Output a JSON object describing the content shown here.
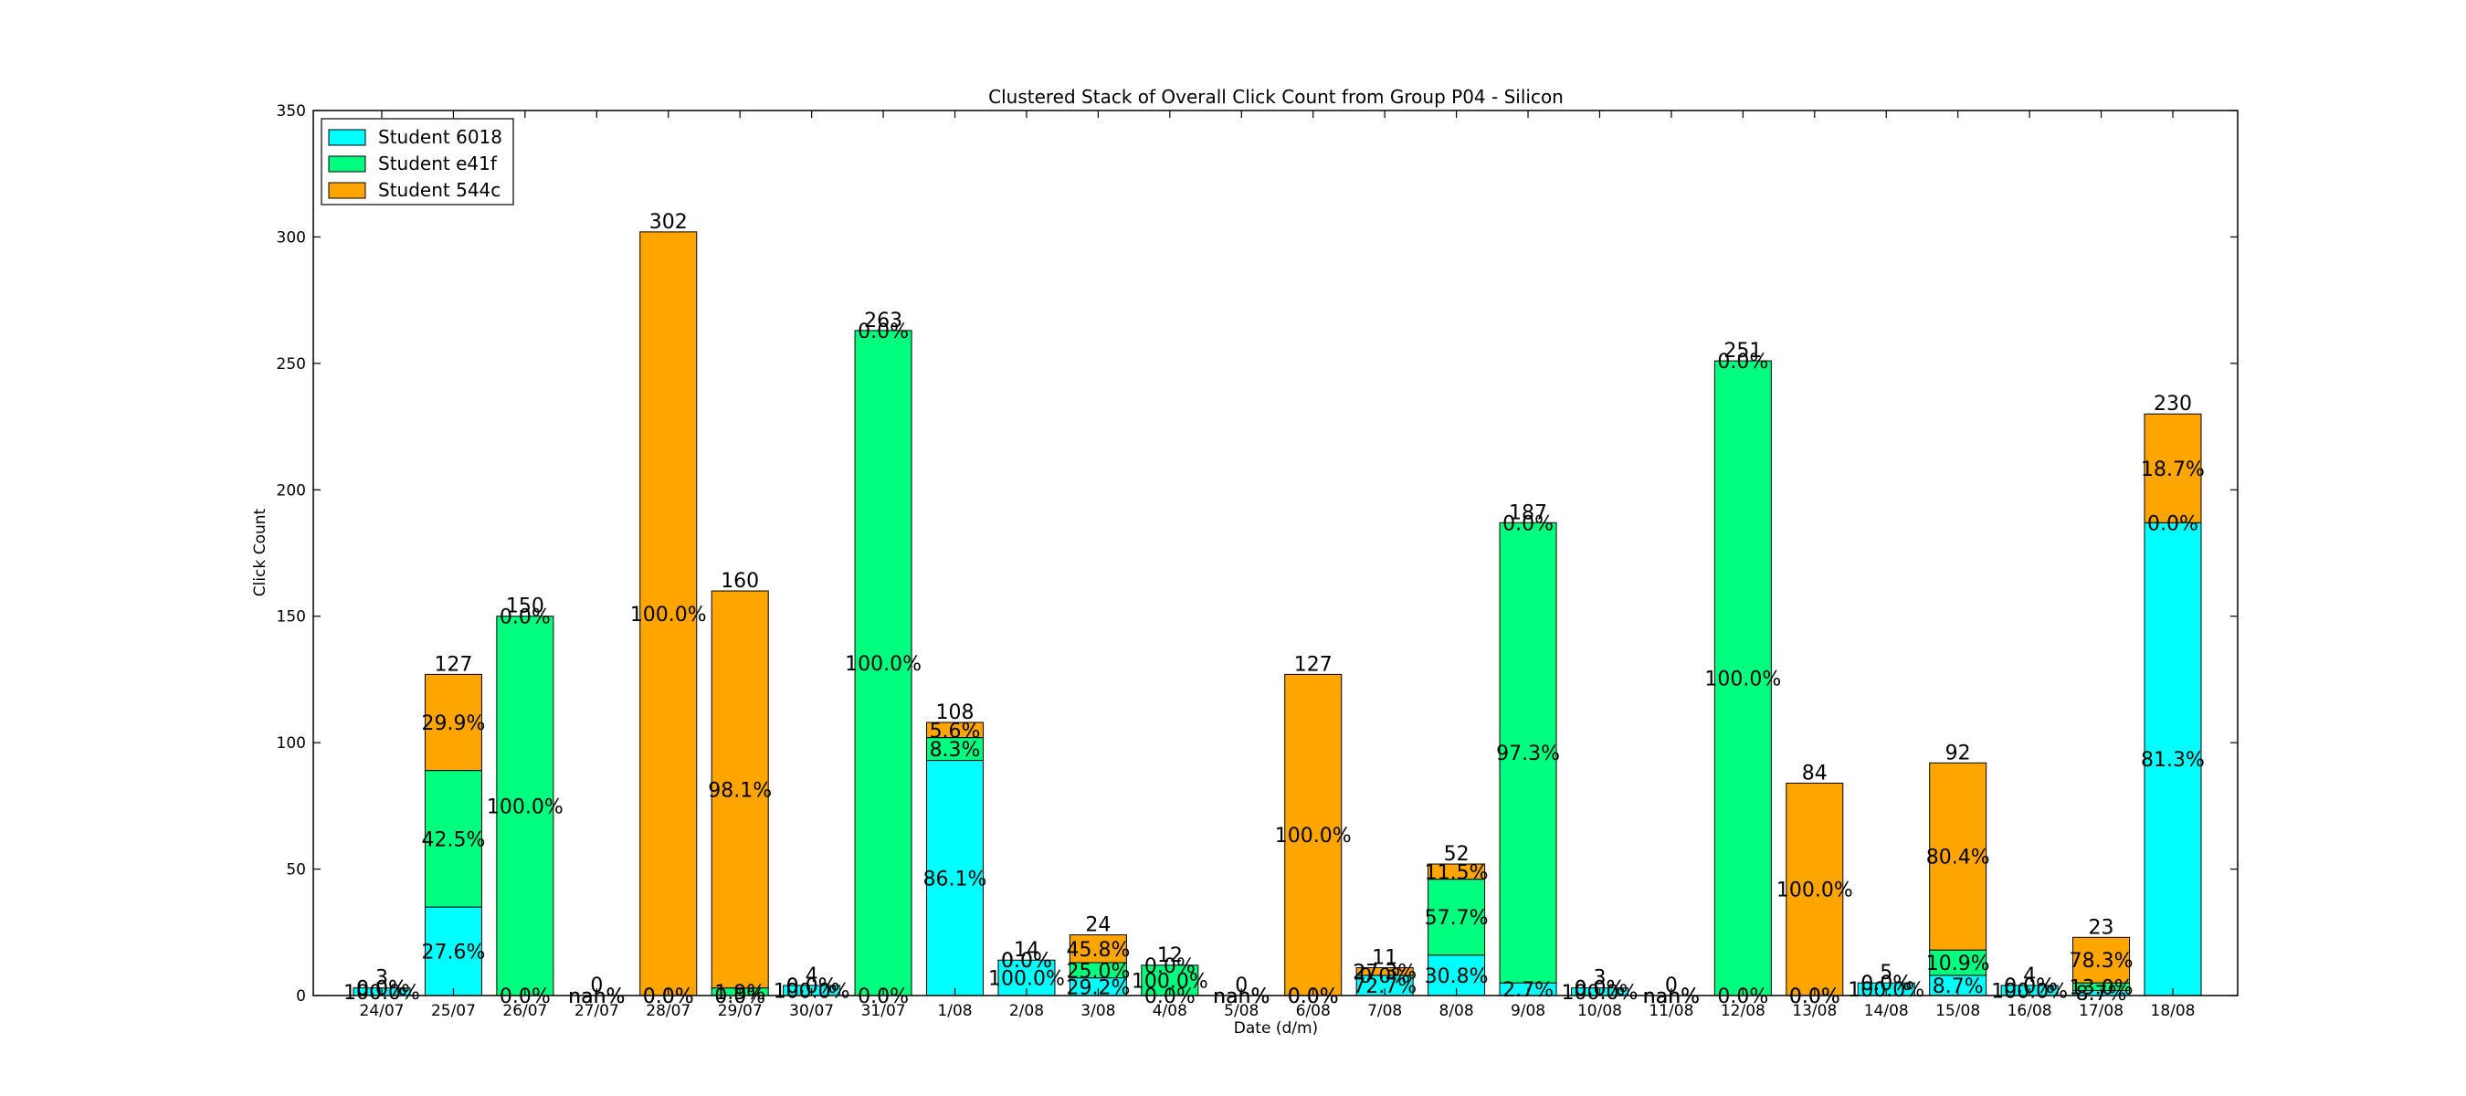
{
  "chart_data": {
    "type": "bar",
    "stacked": true,
    "title": "Clustered Stack of Overall Click Count from Group P04 - Silicon",
    "xlabel": "Date (d/m)",
    "ylabel": "Click Count",
    "ylim": [
      0,
      350
    ],
    "yticks": [
      0,
      50,
      100,
      150,
      200,
      250,
      300,
      350
    ],
    "legend_position": "top-left",
    "grid": false,
    "categories": [
      "24/07",
      "25/07",
      "26/07",
      "27/07",
      "28/07",
      "29/07",
      "30/07",
      "31/07",
      "1/08",
      "2/08",
      "3/08",
      "4/08",
      "5/08",
      "6/08",
      "7/08",
      "8/08",
      "9/08",
      "10/08",
      "11/08",
      "12/08",
      "13/08",
      "14/08",
      "15/08",
      "16/08",
      "17/08",
      "18/08"
    ],
    "series": [
      {
        "name": "Student 6018",
        "color": "#00ffff",
        "values": [
          3,
          35,
          0,
          0,
          0,
          0,
          4,
          0,
          93,
          14,
          7,
          0,
          0,
          0,
          8,
          16,
          5,
          3,
          0,
          0,
          0,
          5,
          8,
          4,
          2,
          187
        ]
      },
      {
        "name": "Student e41f",
        "color": "#00ff7f",
        "values": [
          0,
          54,
          150,
          0,
          0,
          3,
          0,
          263,
          9,
          0,
          6,
          12,
          0,
          0,
          0,
          30,
          182,
          0,
          0,
          251,
          0,
          0,
          10,
          0,
          3,
          0
        ]
      },
      {
        "name": "Student 544c",
        "color": "#ffa500",
        "values": [
          0,
          38,
          0,
          0,
          302,
          157,
          0,
          0,
          6,
          0,
          11,
          0,
          0,
          127,
          3,
          6,
          0,
          0,
          0,
          0,
          84,
          0,
          74,
          0,
          18,
          43
        ]
      }
    ],
    "totals": [
      3,
      127,
      150,
      0,
      302,
      160,
      4,
      263,
      108,
      14,
      24,
      12,
      0,
      127,
      11,
      52,
      187,
      3,
      0,
      251,
      84,
      5,
      92,
      4,
      23,
      230
    ],
    "percent_labels": [
      [
        "100.0%",
        "0.0%",
        "0.0%"
      ],
      [
        "27.6%",
        "42.5%",
        "29.9%"
      ],
      [
        "0.0%",
        "100.0%",
        "0.0%"
      ],
      [
        "nan%",
        "nan%",
        "nan%"
      ],
      [
        "0.0%",
        "0.0%",
        "100.0%"
      ],
      [
        "0.0%",
        "1.9%",
        "98.1%"
      ],
      [
        "100.0%",
        "0.0%",
        "0.0%"
      ],
      [
        "0.0%",
        "100.0%",
        "0.0%"
      ],
      [
        "86.1%",
        "8.3%",
        "5.6%"
      ],
      [
        "100.0%",
        "0.0%",
        "0.0%"
      ],
      [
        "29.2%",
        "25.0%",
        "45.8%"
      ],
      [
        "0.0%",
        "100.0%",
        "0.0%"
      ],
      [
        "nan%",
        "nan%",
        "nan%"
      ],
      [
        "0.0%",
        "0.0%",
        "100.0%"
      ],
      [
        "72.7%",
        "0.0%",
        "27.3%"
      ],
      [
        "30.8%",
        "57.7%",
        "11.5%"
      ],
      [
        "2.7%",
        "97.3%",
        "0.0%"
      ],
      [
        "100.0%",
        "0.0%",
        "0.0%"
      ],
      [
        "nan%",
        "nan%",
        "nan%"
      ],
      [
        "0.0%",
        "100.0%",
        "0.0%"
      ],
      [
        "0.0%",
        "0.0%",
        "100.0%"
      ],
      [
        "100.0%",
        "0.0%",
        "0.0%"
      ],
      [
        "8.7%",
        "10.9%",
        "80.4%"
      ],
      [
        "100.0%",
        "0.0%",
        "0.0%"
      ],
      [
        "8.7%",
        "13.0%",
        "78.3%"
      ],
      [
        "81.3%",
        "0.0%",
        "18.7%"
      ]
    ]
  }
}
